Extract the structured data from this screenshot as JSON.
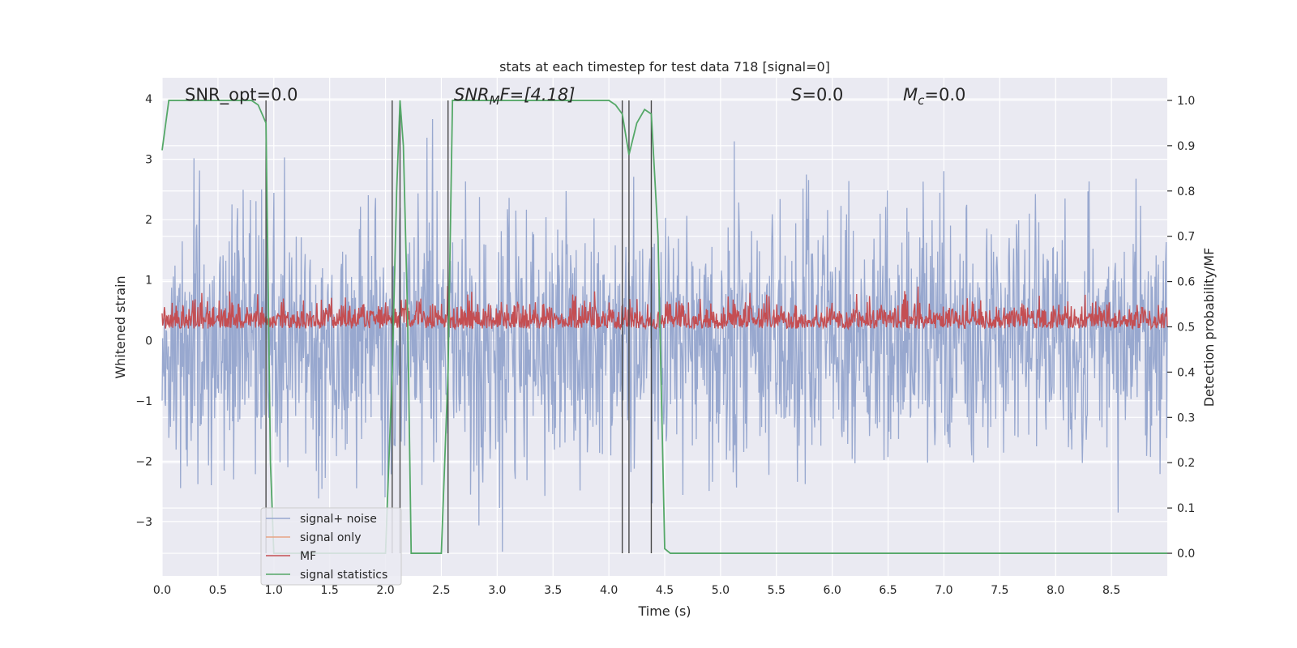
{
  "chart_data": {
    "type": "line",
    "title": "stats at each timestep for test data 718 [signal=0]",
    "xlabel": "Time (s)",
    "ylabel": "Whitened strain",
    "y2label": "Detection probability/MF",
    "xlim": [
      0.0,
      9.0
    ],
    "ylim": [
      -3.9,
      4.35
    ],
    "y2lim": [
      -0.05,
      1.05
    ],
    "xticks": [
      "0.0",
      "0.5",
      "1.0",
      "1.5",
      "2.0",
      "2.5",
      "3.0",
      "3.5",
      "4.0",
      "4.5",
      "5.0",
      "5.5",
      "6.0",
      "6.5",
      "7.0",
      "7.5",
      "8.0",
      "8.5"
    ],
    "yticks": [
      "4",
      "3",
      "2",
      "1",
      "0",
      "−1",
      "−2",
      "−3"
    ],
    "y2ticks": [
      "1.0",
      "0.9",
      "0.8",
      "0.7",
      "0.6",
      "0.5",
      "0.4",
      "0.3",
      "0.2",
      "0.1",
      "0.0"
    ],
    "grid": true,
    "annotations": {
      "snr_opt": "SNR_opt=0.0",
      "snr_mf_main": "SNR",
      "snr_mf_sub": "M",
      "snr_mf_rest": "F=[4.18]",
      "s_main": "S",
      "s_rest": "=0.0",
      "mc_main": "M",
      "mc_sub": "c",
      "mc_rest": "=0.0"
    },
    "legend": {
      "position": "lower-left",
      "entries": [
        "signal+ noise",
        "signal only",
        "MF",
        "signal statistics"
      ]
    },
    "series": [
      {
        "name": "signal+ noise",
        "color": "#98a8cf",
        "axis": "left",
        "kind": "noise",
        "n_samples": 1800,
        "envelope": [
          -3.5,
          4.0
        ]
      },
      {
        "name": "signal only",
        "color": "#e8a384",
        "axis": "left",
        "x": [],
        "y": []
      },
      {
        "name": "MF",
        "color": "#c44e52",
        "axis": "right",
        "kind": "noise",
        "n_samples": 1800,
        "baseline": 0.5,
        "range": [
          0.47,
          0.59
        ]
      },
      {
        "name": "signal statistics",
        "color": "#55a868",
        "axis": "right",
        "x": [
          0.0,
          0.06,
          0.8,
          0.86,
          0.93,
          0.97,
          1.0,
          1.05,
          1.1,
          2.0,
          2.06,
          2.1,
          2.13,
          2.16,
          2.2,
          2.23,
          2.28,
          2.5,
          2.56,
          2.6,
          2.66,
          3.5,
          4.0,
          4.06,
          4.12,
          4.18,
          4.25,
          4.32,
          4.38,
          4.44,
          4.5,
          4.55,
          5.0,
          9.0
        ],
        "y": [
          0.89,
          1.0,
          1.0,
          0.99,
          0.95,
          0.2,
          0.0,
          0.0,
          0.0,
          0.0,
          0.4,
          0.8,
          1.0,
          0.9,
          0.5,
          0.0,
          0.0,
          0.0,
          0.4,
          1.0,
          1.0,
          1.0,
          1.0,
          0.99,
          0.97,
          0.88,
          0.95,
          0.98,
          0.97,
          0.7,
          0.01,
          0.0,
          0.0,
          0.0
        ]
      }
    ],
    "vlines": {
      "color": "#4a4a4a",
      "x": [
        0.93,
        2.06,
        2.13,
        2.56,
        4.12,
        4.18,
        4.38
      ]
    }
  }
}
